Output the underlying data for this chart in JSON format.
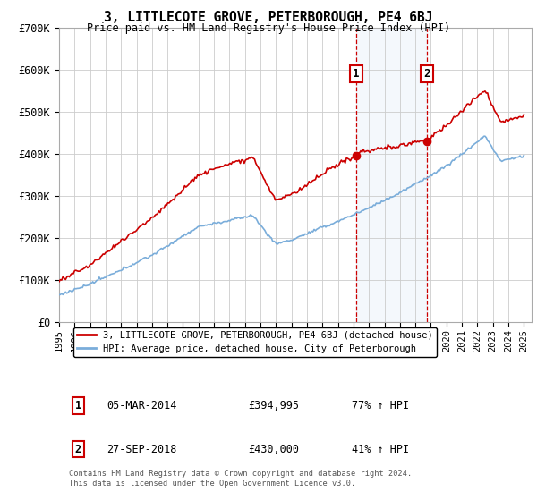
{
  "title": "3, LITTLECOTE GROVE, PETERBOROUGH, PE4 6BJ",
  "subtitle": "Price paid vs. HM Land Registry's House Price Index (HPI)",
  "legend_line1": "3, LITTLECOTE GROVE, PETERBOROUGH, PE4 6BJ (detached house)",
  "legend_line2": "HPI: Average price, detached house, City of Peterborough",
  "sale1_label": "1",
  "sale1_date": "05-MAR-2014",
  "sale1_price": "£394,995",
  "sale1_hpi": "77% ↑ HPI",
  "sale1_year": 2014.17,
  "sale1_value": 394995,
  "sale2_label": "2",
  "sale2_date": "27-SEP-2018",
  "sale2_price": "£430,000",
  "sale2_hpi": "41% ↑ HPI",
  "sale2_year": 2018.74,
  "sale2_value": 430000,
  "footnote": "Contains HM Land Registry data © Crown copyright and database right 2024.\nThis data is licensed under the Open Government Licence v3.0.",
  "red_color": "#cc0000",
  "blue_color": "#7aadda",
  "background_color": "#ffffff",
  "grid_color": "#cccccc",
  "ylim": [
    0,
    700000
  ],
  "yticks": [
    0,
    100000,
    200000,
    300000,
    400000,
    500000,
    600000,
    700000
  ],
  "ytick_labels": [
    "£0",
    "£100K",
    "£200K",
    "£300K",
    "£400K",
    "£500K",
    "£600K",
    "£700K"
  ],
  "xlim_start": 1995.0,
  "xlim_end": 2025.5
}
